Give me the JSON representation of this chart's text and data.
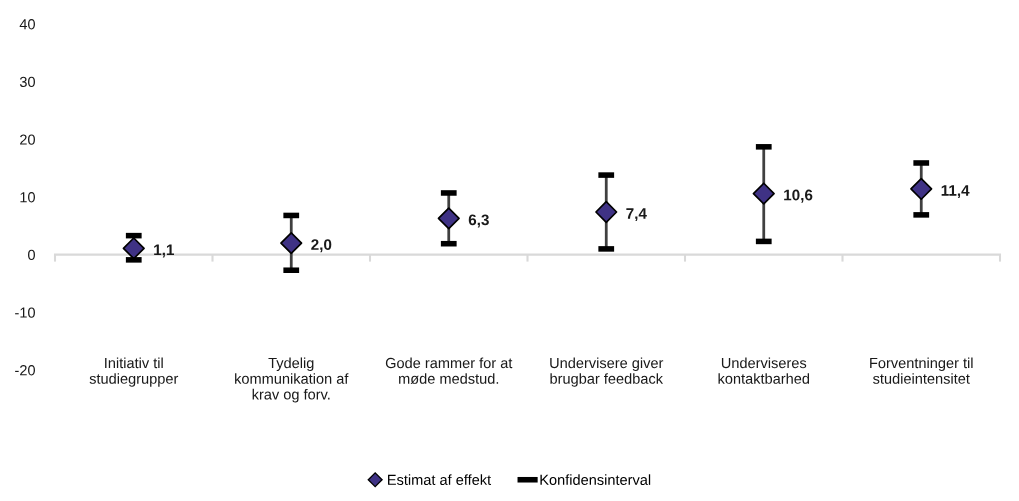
{
  "chart_data": {
    "type": "scatter",
    "categories": [
      "Initiativ til\nstudiegrupper",
      "Tydelig\nkommunikation af\nkrav og forv.",
      "Gode rammer for at\nmøde medstud.",
      "Undervisere giver\nbrugbar feedback",
      "Underviseres\nkontaktbarhed",
      "Forventninger til\nstudieintensitet"
    ],
    "series": [
      {
        "name": "Estimat af effekt",
        "marker": "diamond",
        "color": "#3f3285",
        "values": [
          1.1,
          2.0,
          6.3,
          7.4,
          10.6,
          11.4
        ],
        "value_labels": [
          "1,1",
          "2,0",
          "6,3",
          "7,4",
          "10,6",
          "11,4"
        ],
        "errors": [
          [
            -0.9,
            3.3
          ],
          [
            -2.7,
            6.8
          ],
          [
            1.9,
            10.7
          ],
          [
            1.0,
            13.8
          ],
          [
            2.3,
            18.7
          ],
          [
            6.9,
            15.9
          ]
        ]
      }
    ],
    "annotations": [
      "Konfidensinterval"
    ],
    "ylim": [
      -20,
      40
    ],
    "yticks": [
      -20,
      -10,
      0,
      10,
      20,
      30,
      40
    ],
    "legend": "bottom"
  }
}
